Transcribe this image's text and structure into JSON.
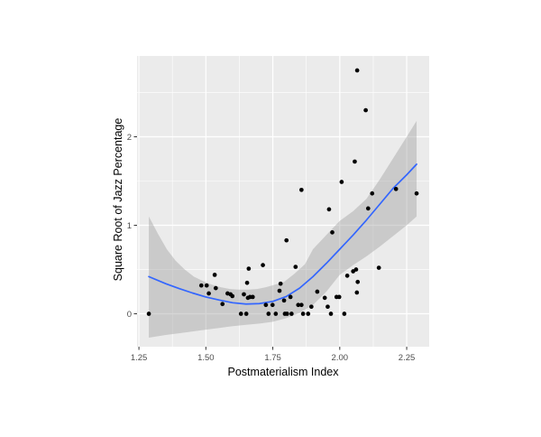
{
  "figure": {
    "title": "",
    "x_axis_title": "Postmaterialism Index",
    "y_axis_title": "Square Root of Jazz Percentage",
    "background_color": "#FFFFFF"
  },
  "chart_data": {
    "type": "scatter",
    "title": "",
    "xlabel": "Postmaterialism Index",
    "ylabel": "Square Root of Jazz Percentage",
    "xlim": [
      1.243,
      2.334
    ],
    "ylim": [
      -0.372,
      2.913
    ],
    "grid": true,
    "legend_position": "none",
    "panel_fill": "#EBEBEB",
    "grid_color": "#FFFFFF",
    "tick_color": "#333333",
    "tick_label_color": "#4D4D4D",
    "point_color": "#000000",
    "smooth_line_color": "#3366FF",
    "ribbon_color": "#999999",
    "ribbon_opacity": 0.4,
    "x_major_ticks": [
      1.25,
      1.5,
      1.75,
      2.0,
      2.25
    ],
    "x_tick_labels": [
      "1.25",
      "1.50",
      "1.75",
      "2.00",
      "2.25"
    ],
    "x_minor_ticks": [
      1.375,
      1.625,
      1.875,
      2.125
    ],
    "y_major_ticks": [
      0,
      1,
      2
    ],
    "y_tick_labels": [
      "0",
      "1",
      "2"
    ],
    "y_minor_ticks": [
      0.5,
      1.5,
      2.5
    ],
    "points": [
      [
        1.287,
        0.0
      ],
      [
        1.483,
        0.32
      ],
      [
        1.503,
        0.32
      ],
      [
        1.511,
        0.23
      ],
      [
        1.533,
        0.44
      ],
      [
        1.537,
        0.29
      ],
      [
        1.562,
        0.11
      ],
      [
        1.581,
        0.23
      ],
      [
        1.592,
        0.22
      ],
      [
        1.599,
        0.2
      ],
      [
        1.631,
        0.0
      ],
      [
        1.642,
        0.22
      ],
      [
        1.651,
        0.0
      ],
      [
        1.654,
        0.35
      ],
      [
        1.657,
        0.18
      ],
      [
        1.66,
        0.51
      ],
      [
        1.665,
        0.19
      ],
      [
        1.675,
        0.19
      ],
      [
        1.713,
        0.55
      ],
      [
        1.724,
        0.1
      ],
      [
        1.734,
        0.0
      ],
      [
        1.749,
        0.1
      ],
      [
        1.761,
        0.0
      ],
      [
        1.775,
        0.26
      ],
      [
        1.779,
        0.34
      ],
      [
        1.792,
        0.15
      ],
      [
        1.795,
        0.0
      ],
      [
        1.801,
        0.83
      ],
      [
        1.803,
        0.0
      ],
      [
        1.816,
        0.19
      ],
      [
        1.82,
        0.0
      ],
      [
        1.835,
        0.53
      ],
      [
        1.845,
        0.1
      ],
      [
        1.857,
        0.1
      ],
      [
        1.857,
        1.4
      ],
      [
        1.863,
        0.0
      ],
      [
        1.882,
        0.0
      ],
      [
        1.894,
        0.08
      ],
      [
        1.916,
        0.25
      ],
      [
        1.944,
        0.18
      ],
      [
        1.955,
        0.08
      ],
      [
        1.96,
        1.18
      ],
      [
        1.967,
        0.0
      ],
      [
        1.972,
        0.92
      ],
      [
        1.988,
        0.19
      ],
      [
        1.998,
        0.19
      ],
      [
        2.007,
        1.49
      ],
      [
        2.017,
        0.0
      ],
      [
        2.028,
        0.43
      ],
      [
        2.05,
        0.48
      ],
      [
        2.056,
        1.72
      ],
      [
        2.061,
        0.5
      ],
      [
        2.064,
        0.24
      ],
      [
        2.065,
        2.75
      ],
      [
        2.067,
        0.36
      ],
      [
        2.097,
        2.3
      ],
      [
        2.106,
        1.19
      ],
      [
        2.121,
        1.36
      ],
      [
        2.146,
        0.52
      ],
      [
        2.21,
        1.41
      ],
      [
        2.287,
        1.36
      ]
    ],
    "smooth_line": [
      [
        1.287,
        0.42
      ],
      [
        1.35,
        0.34
      ],
      [
        1.4,
        0.285
      ],
      [
        1.45,
        0.235
      ],
      [
        1.5,
        0.19
      ],
      [
        1.55,
        0.155
      ],
      [
        1.6,
        0.125
      ],
      [
        1.65,
        0.11
      ],
      [
        1.7,
        0.115
      ],
      [
        1.75,
        0.14
      ],
      [
        1.8,
        0.195
      ],
      [
        1.85,
        0.29
      ],
      [
        1.9,
        0.42
      ],
      [
        1.95,
        0.57
      ],
      [
        2.0,
        0.73
      ],
      [
        2.05,
        0.89
      ],
      [
        2.1,
        1.06
      ],
      [
        2.15,
        1.24
      ],
      [
        2.2,
        1.42
      ],
      [
        2.25,
        1.57
      ],
      [
        2.287,
        1.69
      ]
    ],
    "ribbon_upper": [
      [
        1.287,
        1.1
      ],
      [
        1.32,
        0.91
      ],
      [
        1.354,
        0.73
      ],
      [
        1.387,
        0.6
      ],
      [
        1.421,
        0.5
      ],
      [
        1.455,
        0.42
      ],
      [
        1.489,
        0.37
      ],
      [
        1.522,
        0.33
      ],
      [
        1.556,
        0.3
      ],
      [
        1.59,
        0.28
      ],
      [
        1.623,
        0.273
      ],
      [
        1.657,
        0.273
      ],
      [
        1.691,
        0.28
      ],
      [
        1.724,
        0.3
      ],
      [
        1.758,
        0.33
      ],
      [
        1.792,
        0.36
      ],
      [
        1.83,
        0.45
      ],
      [
        1.87,
        0.56
      ],
      [
        1.9,
        0.73
      ],
      [
        1.95,
        0.89
      ],
      [
        2.0,
        1.05
      ],
      [
        2.05,
        1.16
      ],
      [
        2.1,
        1.3
      ],
      [
        2.15,
        1.52
      ],
      [
        2.2,
        1.76
      ],
      [
        2.25,
        2.0
      ],
      [
        2.287,
        2.18
      ]
    ],
    "ribbon_lower": [
      [
        1.287,
        -0.27
      ],
      [
        1.35,
        -0.24
      ],
      [
        1.4,
        -0.22
      ],
      [
        1.45,
        -0.2
      ],
      [
        1.5,
        -0.18
      ],
      [
        1.55,
        -0.16
      ],
      [
        1.6,
        -0.14
      ],
      [
        1.65,
        -0.125
      ],
      [
        1.7,
        -0.11
      ],
      [
        1.75,
        -0.09
      ],
      [
        1.8,
        -0.05
      ],
      [
        1.85,
        0.01
      ],
      [
        1.9,
        0.1
      ],
      [
        1.95,
        0.25
      ],
      [
        2.0,
        0.44
      ],
      [
        2.05,
        0.55
      ],
      [
        2.1,
        0.65
      ],
      [
        2.15,
        0.76
      ],
      [
        2.2,
        0.88
      ],
      [
        2.25,
        1.0
      ],
      [
        2.287,
        1.1
      ]
    ]
  }
}
